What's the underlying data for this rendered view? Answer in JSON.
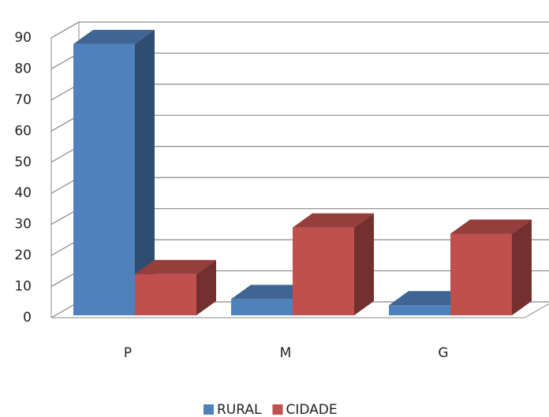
{
  "chart_data": {
    "type": "bar3d",
    "categories": [
      "P",
      "M",
      "G"
    ],
    "series": [
      {
        "name": "RURAL",
        "color": "#4f81bd",
        "values": [
          88,
          6,
          4
        ]
      },
      {
        "name": "CIDADE",
        "color": "#c0504d",
        "values": [
          14,
          29,
          27
        ]
      }
    ],
    "ylim": [
      0,
      90
    ],
    "yticks": [
      0,
      10,
      20,
      30,
      40,
      50,
      60,
      70,
      80,
      90
    ],
    "grid": true,
    "legend": "bottom"
  }
}
